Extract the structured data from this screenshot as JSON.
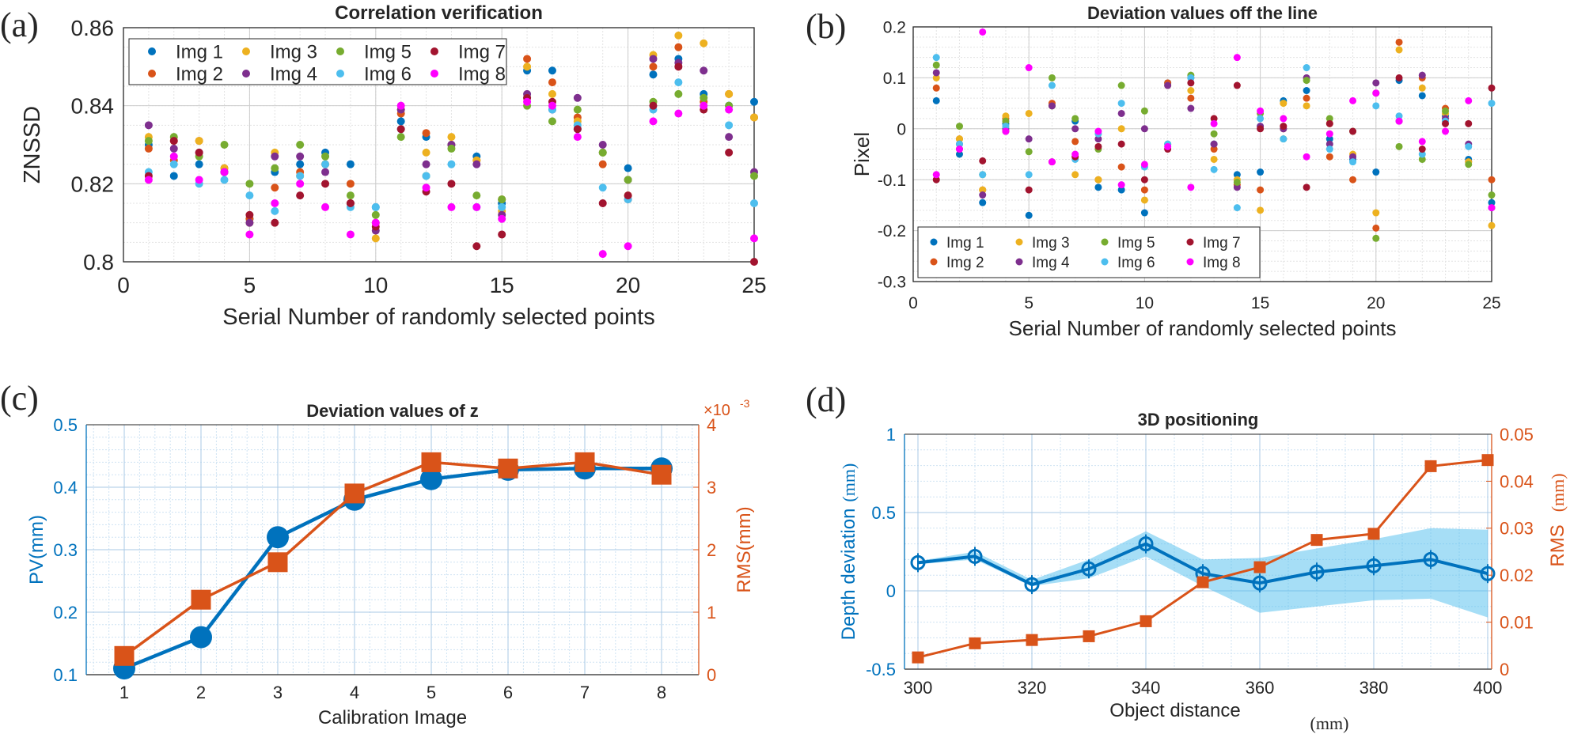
{
  "panel_labels": [
    "(a)",
    "(b)",
    "(c)",
    "(d)"
  ],
  "colors": {
    "Img 1": "#0072BD",
    "Img 2": "#D95319",
    "Img 3": "#EDB120",
    "Img 4": "#7E2F8E",
    "Img 5": "#77AC30",
    "Img 6": "#4DBEEE",
    "Img 7": "#A2142F",
    "Img 8": "#FF00FF",
    "left_axis": "#0072BD",
    "right_axis": "#D95319",
    "band": "#4DBEEE"
  },
  "chart_data": [
    {
      "type": "scatter",
      "title": "Correlation verification",
      "xlabel": "Serial Number of randomly selected points",
      "ylabel": "ZNSSD",
      "xlim": [
        0,
        25
      ],
      "ylim": [
        0.8,
        0.86
      ],
      "xticks": [
        "0",
        "5",
        "10",
        "15",
        "20",
        "25"
      ],
      "yticks": [
        "0.8",
        "0.82",
        "0.84",
        "0.86"
      ],
      "grid": true,
      "legend": "top-left",
      "x": [
        1,
        2,
        3,
        4,
        5,
        6,
        7,
        8,
        9,
        10,
        11,
        12,
        13,
        14,
        15,
        16,
        17,
        18,
        19,
        20,
        21,
        22,
        23,
        24,
        25
      ],
      "series": [
        {
          "name": "Img 1",
          "y": [
            0.83,
            0.822,
            0.825,
            0.823,
            0.811,
            0.823,
            0.825,
            0.828,
            0.825,
            0.814,
            0.836,
            0.832,
            0.83,
            0.827,
            0.815,
            0.849,
            0.849,
            0.834,
            0.828,
            0.824,
            0.848,
            0.852,
            0.843,
            0.84,
            0.841
          ]
        },
        {
          "name": "Img 2",
          "y": [
            0.829,
            0.826,
            0.831,
            0.824,
            0.811,
            0.819,
            0.823,
            0.825,
            0.82,
            0.81,
            0.838,
            0.833,
            0.83,
            0.826,
            0.816,
            0.852,
            0.846,
            0.837,
            0.825,
            0.816,
            0.85,
            0.855,
            0.841,
            0.843,
            0.837
          ]
        },
        {
          "name": "Img 3",
          "y": [
            0.832,
            0.831,
            0.831,
            0.824,
            0.81,
            0.828,
            0.822,
            0.825,
            0.815,
            0.806,
            0.839,
            0.828,
            0.832,
            0.826,
            0.813,
            0.85,
            0.843,
            0.836,
            0.828,
            0.817,
            0.853,
            0.858,
            0.856,
            0.843,
            0.837
          ]
        },
        {
          "name": "Img 4",
          "y": [
            0.835,
            0.829,
            0.828,
            0.823,
            0.81,
            0.827,
            0.827,
            0.823,
            0.815,
            0.808,
            0.839,
            0.825,
            0.83,
            0.825,
            0.812,
            0.843,
            0.839,
            0.842,
            0.83,
            0.821,
            0.852,
            0.851,
            0.849,
            0.832,
            0.823
          ]
        },
        {
          "name": "Img 5",
          "y": [
            0.831,
            0.832,
            0.827,
            0.83,
            0.82,
            0.824,
            0.83,
            0.827,
            0.817,
            0.812,
            0.832,
            0.822,
            0.829,
            0.817,
            0.816,
            0.84,
            0.836,
            0.839,
            0.828,
            0.821,
            0.841,
            0.843,
            0.842,
            0.84,
            0.822
          ]
        },
        {
          "name": "Img 6",
          "y": [
            0.823,
            0.825,
            0.82,
            0.821,
            0.817,
            0.813,
            0.822,
            0.825,
            0.814,
            0.814,
            0.834,
            0.822,
            0.825,
            0.814,
            0.814,
            0.842,
            0.839,
            0.835,
            0.819,
            0.816,
            0.839,
            0.846,
            0.84,
            0.835,
            0.815
          ]
        },
        {
          "name": "Img 7",
          "y": [
            0.822,
            0.831,
            0.828,
            0.823,
            0.812,
            0.81,
            0.817,
            0.82,
            0.815,
            0.809,
            0.834,
            0.818,
            0.82,
            0.804,
            0.807,
            0.842,
            0.841,
            0.834,
            0.815,
            0.817,
            0.84,
            0.85,
            0.839,
            0.828,
            0.8
          ]
        },
        {
          "name": "Img 8",
          "y": [
            0.821,
            0.827,
            0.821,
            0.823,
            0.807,
            0.815,
            0.82,
            0.814,
            0.807,
            0.81,
            0.84,
            0.819,
            0.814,
            0.814,
            0.811,
            0.841,
            0.84,
            0.832,
            0.802,
            0.804,
            0.836,
            0.838,
            0.84,
            0.839,
            0.806
          ]
        }
      ]
    },
    {
      "type": "scatter",
      "title": "Deviation values off the line",
      "xlabel": "Serial Number of randomly selected points",
      "ylabel": "Pixel",
      "xlim": [
        0,
        25
      ],
      "ylim": [
        -0.3,
        0.2
      ],
      "xticks": [
        "0",
        "5",
        "10",
        "15",
        "20",
        "25"
      ],
      "yticks": [
        "-0.3",
        "-0.2",
        "-0.1",
        "0",
        "0.1",
        "0.2"
      ],
      "grid": true,
      "legend": "bottom-left",
      "x": [
        1,
        2,
        3,
        4,
        5,
        6,
        7,
        8,
        9,
        10,
        11,
        12,
        13,
        14,
        15,
        16,
        17,
        18,
        19,
        20,
        21,
        22,
        23,
        24,
        25
      ],
      "series": [
        {
          "name": "Img 1",
          "y": [
            0.055,
            -0.05,
            -0.145,
            0.01,
            -0.17,
            0.045,
            0.015,
            -0.115,
            -0.12,
            -0.165,
            0.09,
            0.1,
            -0.03,
            -0.09,
            -0.085,
            0.055,
            0.075,
            -0.02,
            -0.06,
            -0.085,
            0.095,
            0.065,
            0.025,
            -0.06,
            -0.145
          ]
        },
        {
          "name": "Img 2",
          "y": [
            0.08,
            -0.02,
            -0.12,
            0.02,
            -0.2,
            0.05,
            -0.025,
            -0.1,
            -0.075,
            -0.12,
            0.09,
            0.06,
            -0.04,
            -0.11,
            -0.12,
            0.0,
            0.06,
            -0.055,
            -0.1,
            -0.195,
            0.17,
            0.1,
            0.04,
            -0.065,
            -0.1
          ]
        },
        {
          "name": "Img 3",
          "y": [
            0.1,
            -0.02,
            -0.12,
            0.025,
            0.03,
            0.045,
            -0.09,
            -0.1,
            0.0,
            -0.14,
            0.085,
            0.075,
            -0.06,
            -0.1,
            -0.16,
            0.05,
            0.045,
            0.01,
            -0.05,
            -0.165,
            0.155,
            0.08,
            0.03,
            -0.065,
            -0.19
          ]
        },
        {
          "name": "Img 4",
          "y": [
            0.11,
            -0.03,
            -0.13,
            0.0,
            -0.02,
            0.045,
            0.0,
            -0.02,
            0.03,
            0.0,
            0.085,
            0.04,
            -0.03,
            -0.115,
            0.005,
            0.0,
            0.1,
            -0.03,
            -0.055,
            0.09,
            0.015,
            0.105,
            0.02,
            -0.03,
            -0.155
          ]
        },
        {
          "name": "Img 5",
          "y": [
            0.125,
            0.005,
            -0.09,
            0.015,
            -0.045,
            0.1,
            0.02,
            -0.04,
            0.085,
            0.035,
            -0.03,
            0.105,
            -0.01,
            -0.105,
            0.03,
            -0.02,
            0.095,
            0.02,
            -0.005,
            -0.215,
            -0.035,
            -0.06,
            0.035,
            -0.07,
            -0.13
          ]
        },
        {
          "name": "Img 6",
          "y": [
            0.14,
            -0.03,
            -0.09,
            0.005,
            -0.09,
            0.085,
            -0.06,
            -0.01,
            0.05,
            -0.075,
            -0.03,
            0.1,
            -0.08,
            -0.155,
            0.02,
            -0.02,
            0.12,
            -0.04,
            -0.065,
            0.045,
            0.025,
            -0.05,
            0.015,
            -0.035,
            0.05
          ]
        },
        {
          "name": "Img 7",
          "y": [
            -0.1,
            -0.04,
            -0.063,
            -0.005,
            -0.12,
            -0.065,
            -0.055,
            -0.035,
            -0.03,
            -0.1,
            -0.04,
            0.09,
            0.02,
            0.085,
            0.0,
            0.005,
            -0.115,
            0.01,
            -0.005,
            0.07,
            0.1,
            -0.04,
            0.01,
            0.01,
            0.08
          ]
        },
        {
          "name": "Img 8",
          "y": [
            -0.09,
            -0.04,
            0.19,
            -0.005,
            0.12,
            -0.065,
            -0.05,
            -0.005,
            -0.11,
            -0.07,
            -0.035,
            -0.115,
            0.01,
            0.14,
            0.035,
            0.02,
            -0.055,
            -0.01,
            0.055,
            0.07,
            0.015,
            -0.025,
            -0.005,
            0.055,
            -0.155
          ]
        }
      ]
    },
    {
      "type": "line",
      "title": "Deviation values of z",
      "xlabel": "Calibration Image",
      "ylabel": "PV(mm)",
      "ylabel_right": "RMS(mm)",
      "right_axis_exponent": "×10",
      "right_axis_exponent_power": "-3",
      "xlim": [
        0.8,
        8.2
      ],
      "ylim": [
        0.1,
        0.5
      ],
      "ylim_right": [
        0,
        0.004
      ],
      "xticks": [
        "1",
        "2",
        "3",
        "4",
        "5",
        "6",
        "7",
        "8"
      ],
      "yticks": [
        "0.1",
        "0.2",
        "0.3",
        "0.4",
        "0.5"
      ],
      "yticks_right": [
        "0",
        "1",
        "2",
        "3",
        "4"
      ],
      "grid": true,
      "x": [
        1,
        2,
        3,
        4,
        5,
        6,
        7,
        8
      ],
      "series": [
        {
          "axis": "left",
          "marker": "circle",
          "y": [
            0.11,
            0.16,
            0.32,
            0.38,
            0.413,
            0.428,
            0.43,
            0.43
          ]
        },
        {
          "axis": "right",
          "marker": "square",
          "y": [
            0.0003,
            0.0012,
            0.0018,
            0.0029,
            0.0034,
            0.0033,
            0.0034,
            0.0032
          ]
        }
      ]
    },
    {
      "type": "line",
      "title": "3D positioning",
      "xlabel": "Object distance",
      "xlabel_unit": "(mm)",
      "ylabel": "Depth deviation",
      "ylabel_unit": "(mm)",
      "ylabel_right": "RMS",
      "ylabel_right_unit": "(mm)",
      "xlim": [
        299,
        401
      ],
      "ylim": [
        -0.5,
        1
      ],
      "ylim_right": [
        0,
        0.05
      ],
      "xticks": [
        "300",
        "320",
        "340",
        "360",
        "380",
        "400"
      ],
      "yticks": [
        "-0.5",
        "0",
        "0.5",
        "1"
      ],
      "yticks_right": [
        "0",
        "0.01",
        "0.02",
        "0.03",
        "0.04",
        "0.05"
      ],
      "grid": true,
      "x": [
        300,
        310,
        320,
        330,
        340,
        350,
        360,
        370,
        380,
        390,
        400
      ],
      "series": [
        {
          "axis": "left",
          "marker": "open-circle",
          "y": [
            0.18,
            0.22,
            0.04,
            0.14,
            0.3,
            0.11,
            0.05,
            0.12,
            0.16,
            0.2,
            0.11
          ],
          "band_upper": [
            0.19,
            0.25,
            0.07,
            0.2,
            0.38,
            0.2,
            0.21,
            0.27,
            0.33,
            0.4,
            0.39
          ],
          "band_lower": [
            0.17,
            0.2,
            0.03,
            0.08,
            0.22,
            0.03,
            -0.14,
            -0.1,
            -0.06,
            -0.05,
            -0.17
          ]
        },
        {
          "axis": "right",
          "marker": "square",
          "y": [
            0.0025,
            0.0055,
            0.0062,
            0.007,
            0.0102,
            0.0185,
            0.0217,
            0.0275,
            0.0288,
            0.0432,
            0.0445
          ]
        }
      ]
    }
  ]
}
